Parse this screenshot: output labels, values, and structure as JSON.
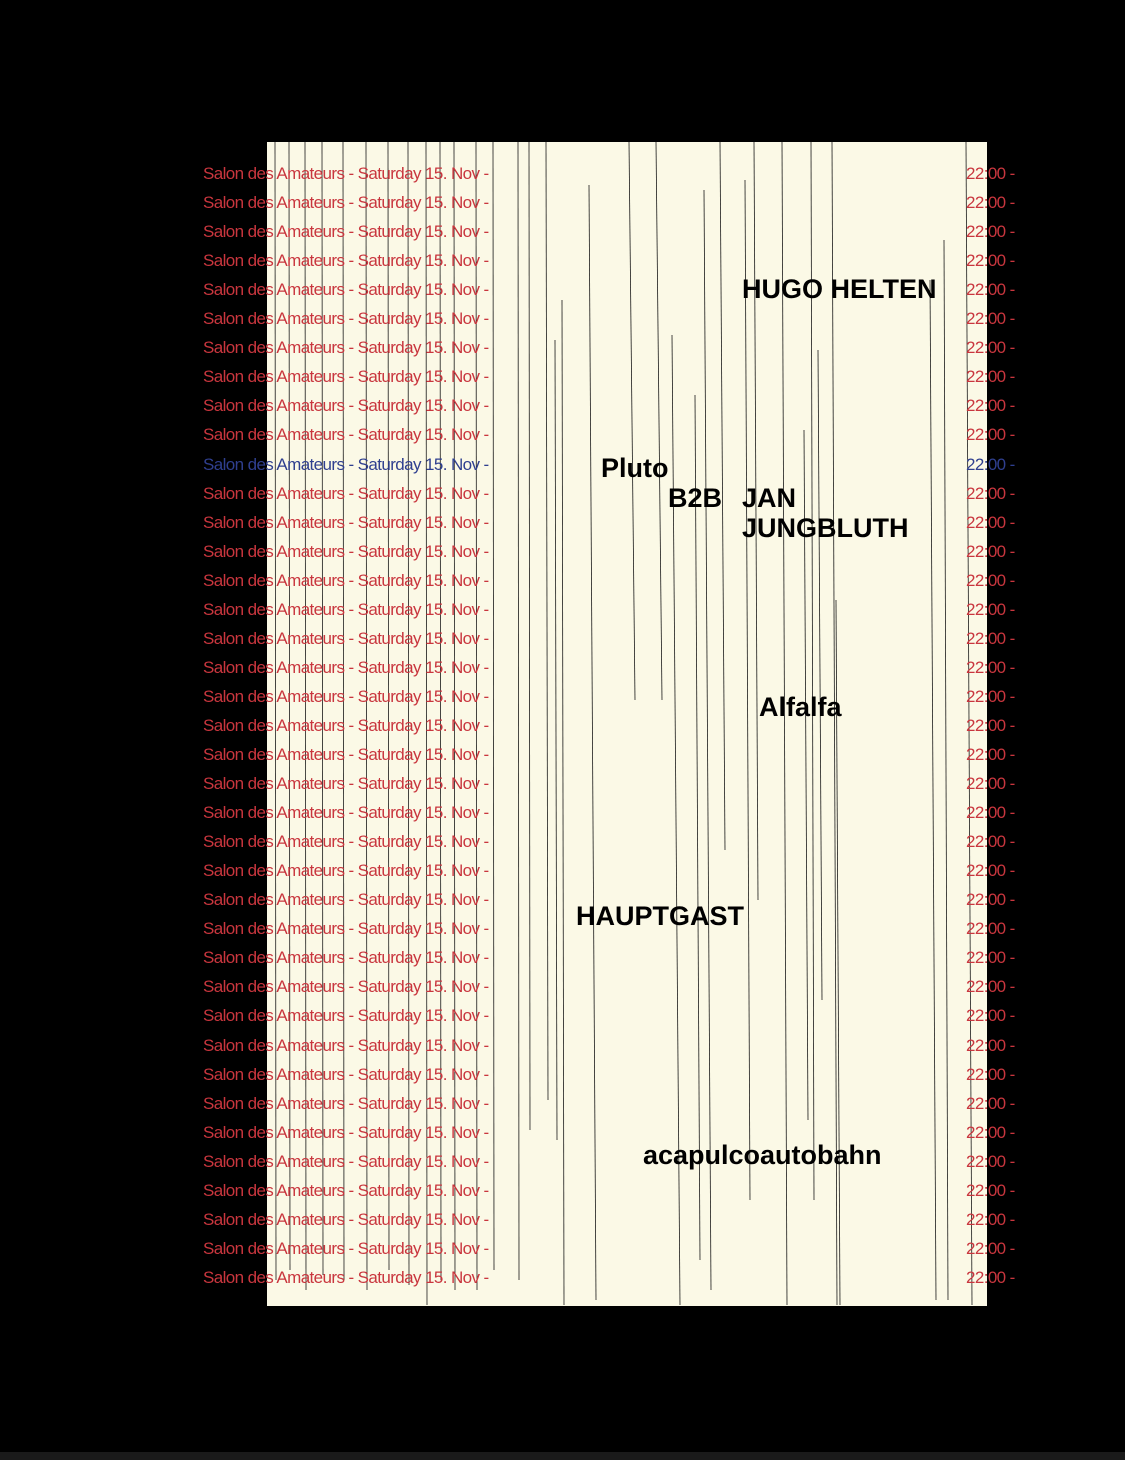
{
  "row": {
    "venue_date": "Salon des Amateurs - Saturday 15. Nov -",
    "time": "22:00 -",
    "count": 39,
    "highlight_index": 10
  },
  "colors": {
    "background": "#000000",
    "paper": "#fbf9e6",
    "row_text": "#c9363e",
    "row_highlight": "#2f3f8f",
    "artist_text": "#000000"
  },
  "artists": {
    "hugo_helten": "HUGO HELTEN",
    "pluto": "Pluto",
    "b2b": "B2B",
    "jan": "JAN",
    "jungbluth": "JUNGBLUTH",
    "alfalfa": "Alfalfa",
    "hauptgast": "HAUPTGAST",
    "acapulcoautobahn": "acapulcoautobahn"
  }
}
